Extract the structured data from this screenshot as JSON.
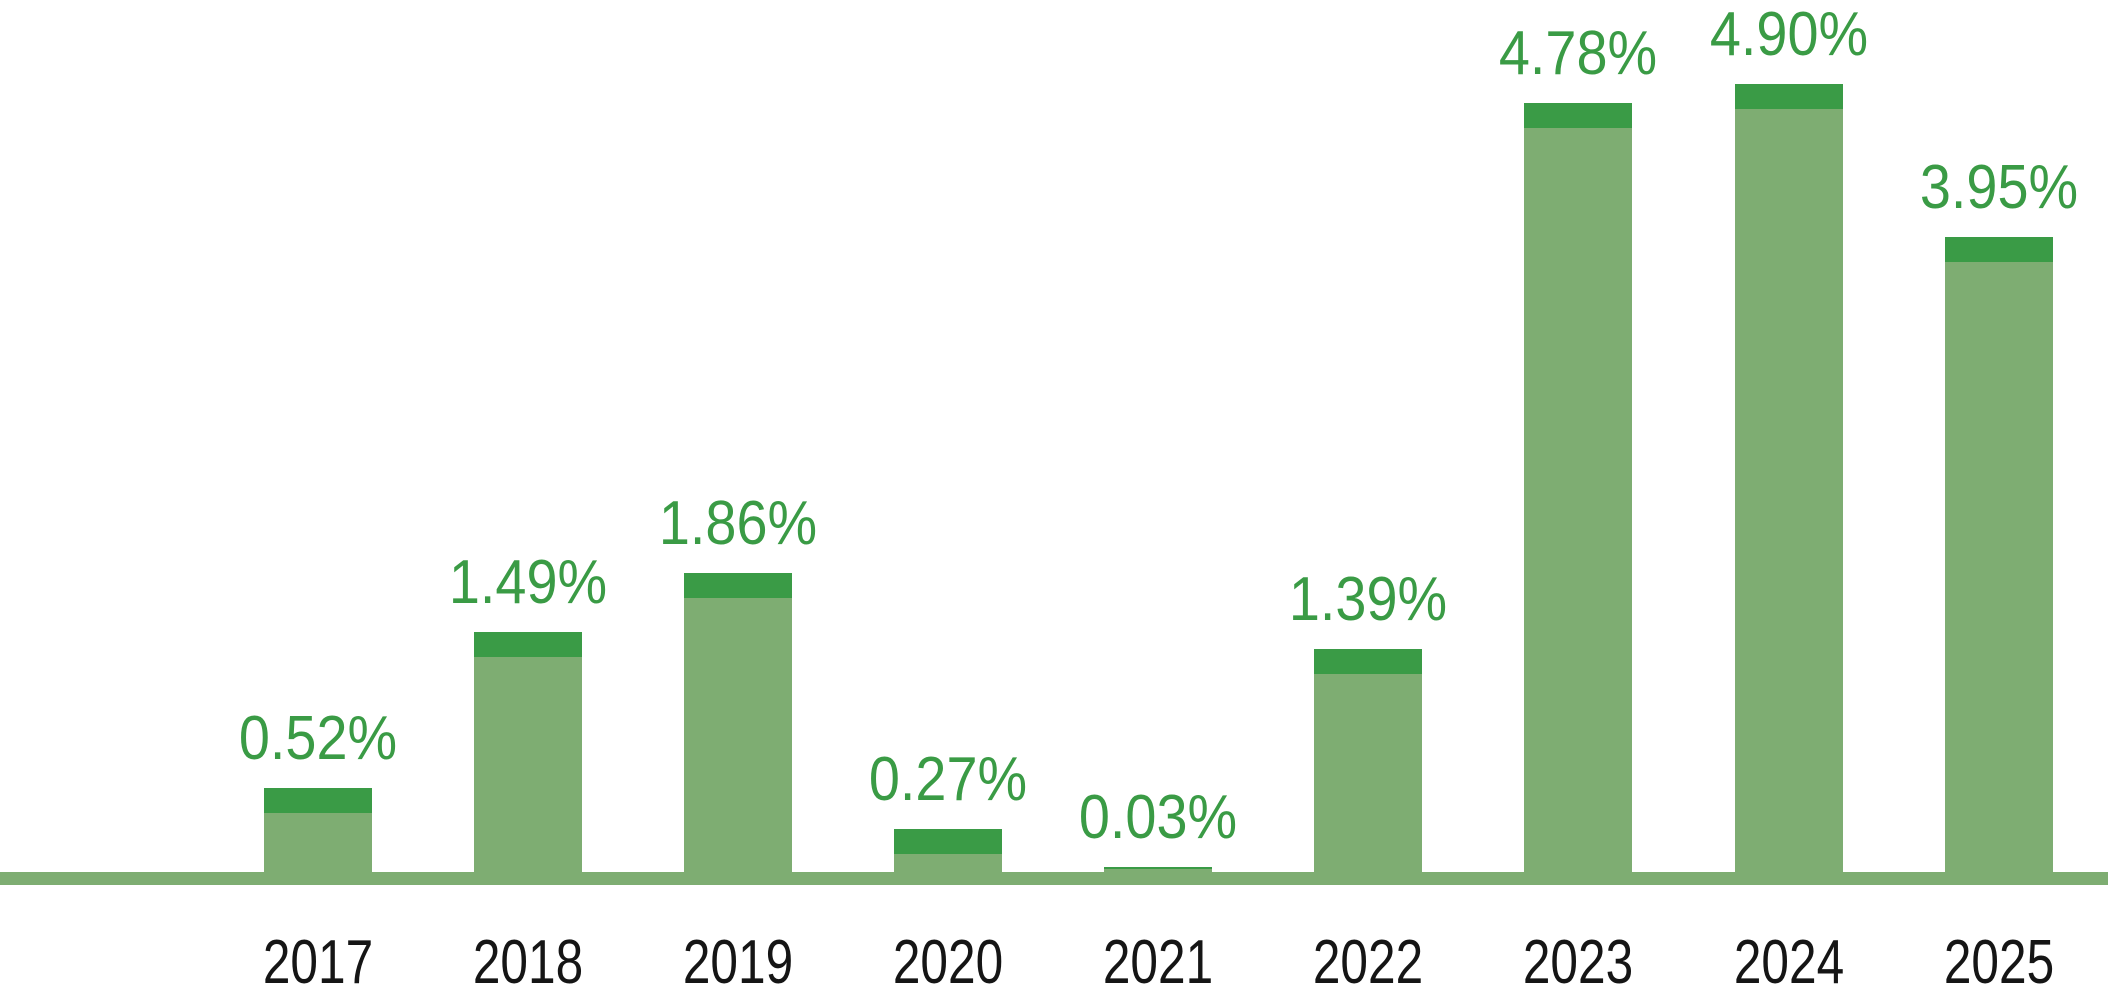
{
  "chart_data": {
    "type": "bar",
    "title": "",
    "xlabel": "",
    "ylabel": "",
    "categories": [
      "2017",
      "2018",
      "2019",
      "2020",
      "2021",
      "2022",
      "2023",
      "2024",
      "2025"
    ],
    "values": [
      0.52,
      1.49,
      1.86,
      0.27,
      0.03,
      1.39,
      4.78,
      4.9,
      3.95
    ],
    "data_labels": [
      "0.52%",
      "1.49%",
      "1.86%",
      "0.27%",
      "0.03%",
      "1.39%",
      "4.78%",
      "4.90%",
      "3.95%"
    ],
    "ylim": [
      0,
      5.2
    ],
    "grid": false,
    "legend": false,
    "axis_line": "bottom-only",
    "colors": {
      "bar_body": "#7ead72",
      "bar_cap": "#3a9b46",
      "value_label_text": "#3a9b45",
      "year_label_text": "#151515",
      "baseline": "#7ead72",
      "background": "#ffffff"
    }
  }
}
